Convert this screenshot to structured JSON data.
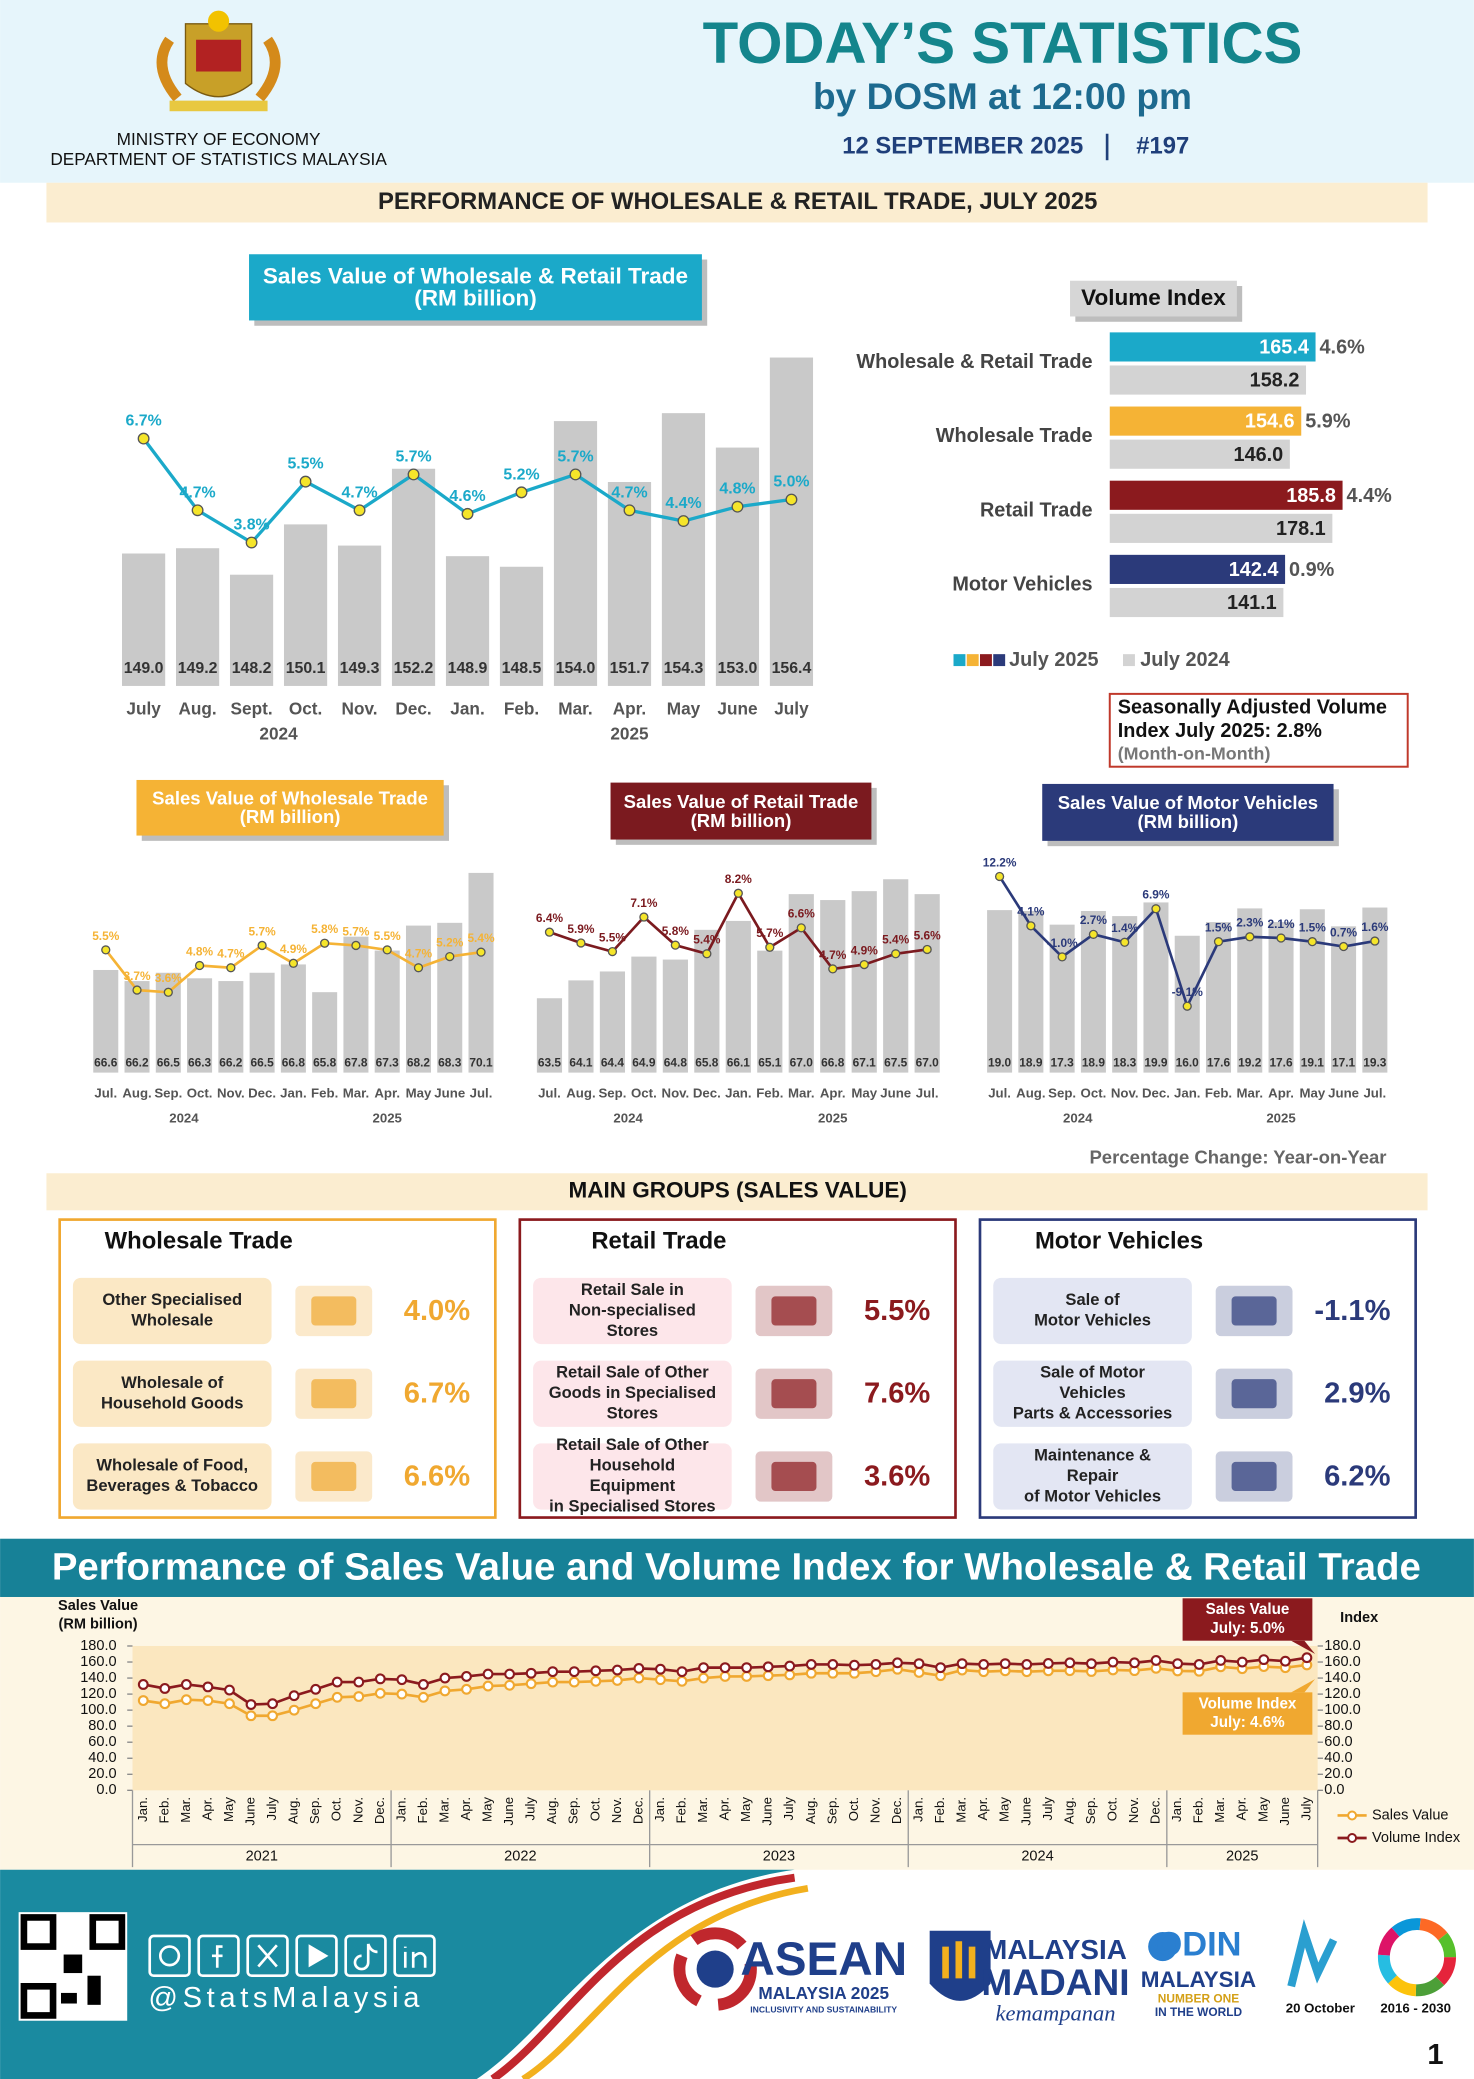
{
  "header": {
    "ministry": [
      "MINISTRY OF ECONOMY",
      "DEPARTMENT OF STATISTICS MALAYSIA"
    ],
    "title": "TODAY’S STATISTICS",
    "subtitle": "by DOSM at 12:00 pm",
    "date": "12 SEPTEMBER 2025",
    "issue": "#197"
  },
  "banner": "PERFORMANCE OF WHOLESALE & RETAIL TRADE, JULY 2025",
  "chart_data": [
    {
      "type": "bar-line",
      "title": [
        "Sales Value of Wholesale & Retail Trade",
        "(RM billion)"
      ],
      "title_color": "#1ba9c9",
      "category_groups": [
        {
          "name": "2024",
          "categories": [
            "July",
            "Aug.",
            "Sept.",
            "Oct.",
            "Nov.",
            "Dec."
          ]
        },
        {
          "name": "2025",
          "categories": [
            "Jan.",
            "Feb.",
            "Mar.",
            "Apr.",
            "May",
            "June",
            "July"
          ]
        }
      ],
      "ylim": [
        144,
        157.4
      ],
      "y2lim": [
        -0.2,
        9.7
      ],
      "series": [
        {
          "color": "#c9c9c9",
          "values": [
            149.0,
            149.2,
            148.2,
            150.1,
            149.3,
            152.2,
            148.9,
            148.5,
            154.0,
            151.7,
            154.3,
            153.0,
            156.4
          ],
          "value_labels": [
            "149.0",
            "149.2",
            "148.2",
            "150.1",
            "149.3",
            "152.2",
            "148.9",
            "148.5",
            "154.0",
            "151.7",
            "154.3",
            "153.0",
            "156.4"
          ]
        },
        {
          "color": "#1ba9c9",
          "axis": "y2",
          "values": [
            6.7,
            4.7,
            3.8,
            5.5,
            4.7,
            5.7,
            4.6,
            5.2,
            5.7,
            4.7,
            4.4,
            4.8,
            5.0
          ],
          "value_labels": [
            "6.7%",
            "4.7%",
            "3.8%",
            "5.5%",
            "4.7%",
            "5.7%",
            "4.6%",
            "5.2%",
            "5.7%",
            "4.7%",
            "4.4%",
            "4.8%",
            "5.0%"
          ]
        }
      ]
    },
    {
      "type": "hbar",
      "title": "Volume Index",
      "categories": [
        "Wholesale & Retail Trade",
        "Wholesale Trade",
        "Retail Trade",
        "Motor Vehicles"
      ],
      "xlim": [
        10,
        285
      ],
      "series": [
        {
          "name": "July 2025",
          "colors": [
            "#1ba9c9",
            "#f5b335",
            "#8b1a1e",
            "#2b3a7a"
          ],
          "values": [
            165.4,
            154.6,
            185.8,
            142.4
          ],
          "value_labels": [
            "165.4",
            "154.6",
            "185.8",
            "142.4"
          ],
          "change_labels": [
            "4.6%",
            "5.9%",
            "4.4%",
            "0.9%"
          ]
        },
        {
          "name": "July 2024",
          "color": "#d3d3d3",
          "values": [
            158.2,
            146.0,
            178.1,
            141.1
          ],
          "value_labels": [
            "158.2",
            "146.0",
            "178.1",
            "141.1"
          ]
        }
      ],
      "note": [
        "Seasonally Adjusted Volume",
        "Index July 2025: 2.8%",
        "(Month-on-Month)"
      ]
    },
    {
      "type": "bar-line",
      "title": [
        "Sales Value of Wholesale Trade",
        "(RM billion)"
      ],
      "title_color": "#f5b335",
      "category_groups": [
        {
          "name": "2024",
          "categories": [
            "Jul.",
            "Aug.",
            "Sep.",
            "Oct.",
            "Nov.",
            "Dec."
          ]
        },
        {
          "name": "2025",
          "categories": [
            "Jan.",
            "Feb.",
            "Mar.",
            "Apr.",
            "May",
            "June",
            "Jul."
          ]
        }
      ],
      "ylim": [
        62.9,
        70.3
      ],
      "y2lim": [
        0,
        9.2
      ],
      "series": [
        {
          "color": "#c9c9c9",
          "values": [
            66.6,
            66.2,
            66.5,
            66.3,
            66.2,
            66.5,
            66.8,
            65.8,
            67.8,
            67.3,
            68.2,
            68.3,
            70.1
          ],
          "value_labels": [
            "66.6",
            "66.2",
            "66.5",
            "66.3",
            "66.2",
            "66.5",
            "66.8",
            "65.8",
            "67.8",
            "67.3",
            "68.2",
            "68.3",
            "70.1"
          ]
        },
        {
          "color": "#f5b335",
          "axis": "y2",
          "values": [
            5.5,
            3.7,
            3.6,
            4.8,
            4.7,
            5.7,
            4.9,
            5.8,
            5.7,
            5.5,
            4.7,
            5.2,
            5.4
          ],
          "value_labels": [
            "5.5%",
            "3.7%",
            "3.6%",
            "4.8%",
            "4.7%",
            "5.7%",
            "4.9%",
            "5.8%",
            "5.7%",
            "5.5%",
            "4.7%",
            "5.2%",
            "5.4%"
          ]
        }
      ]
    },
    {
      "type": "bar-line",
      "title": [
        "Sales Value of Retail Trade",
        "(RM billion)"
      ],
      "title_color": "#7b1a1f",
      "category_groups": [
        {
          "name": "2024",
          "categories": [
            "Jul.",
            "Aug.",
            "Sep.",
            "Oct.",
            "Nov.",
            "Dec."
          ]
        },
        {
          "name": "2025",
          "categories": [
            "Jan.",
            "Feb.",
            "Mar.",
            "Apr.",
            "May",
            "June",
            "Jul."
          ]
        }
      ],
      "ylim": [
        61.0,
        67.9
      ],
      "y2lim": [
        -0.1,
        9.4
      ],
      "series": [
        {
          "color": "#c9c9c9",
          "values": [
            63.5,
            64.1,
            64.4,
            64.9,
            64.8,
            65.8,
            66.1,
            65.1,
            67.0,
            66.8,
            67.1,
            67.5,
            67.0
          ],
          "value_labels": [
            "63.5",
            "64.1",
            "64.4",
            "64.9",
            "64.8",
            "65.8",
            "66.1",
            "65.1",
            "67.0",
            "66.8",
            "67.1",
            "67.5",
            "67.0"
          ]
        },
        {
          "color": "#7b1a1f",
          "axis": "y2",
          "values": [
            6.4,
            5.9,
            5.5,
            7.1,
            5.8,
            5.4,
            8.2,
            5.7,
            6.6,
            4.7,
            4.9,
            5.4,
            5.6
          ],
          "value_labels": [
            "6.4%",
            "5.9%",
            "5.5%",
            "7.1%",
            "5.8%",
            "5.4%",
            "8.2%",
            "5.7%",
            "6.6%",
            "4.7%",
            "4.9%",
            "5.4%",
            "5.6%"
          ]
        }
      ]
    },
    {
      "type": "bar-line",
      "title": [
        "Sales Value of Motor Vehicles",
        "(RM billion)"
      ],
      "title_color": "#2b3a7a",
      "category_groups": [
        {
          "name": "2024",
          "categories": [
            "Jul.",
            "Aug.",
            "Sep.",
            "Oct.",
            "Nov.",
            "Dec."
          ]
        },
        {
          "name": "2025",
          "categories": [
            "Jan.",
            "Feb.",
            "Mar.",
            "Apr.",
            "May",
            "June",
            "Jul."
          ]
        }
      ],
      "ylim": [
        0,
        24
      ],
      "y2lim": [
        -20,
        13.7
      ],
      "series": [
        {
          "color": "#c9c9c9",
          "values": [
            19.0,
            18.9,
            17.3,
            18.9,
            18.3,
            19.9,
            16.0,
            17.6,
            19.2,
            17.6,
            19.1,
            17.1,
            19.3
          ],
          "value_labels": [
            "19.0",
            "18.9",
            "17.3",
            "18.9",
            "18.3",
            "19.9",
            "16.0",
            "17.6",
            "19.2",
            "17.6",
            "19.1",
            "17.1",
            "19.3"
          ]
        },
        {
          "color": "#2b3a7a",
          "axis": "y2",
          "values": [
            12.2,
            4.1,
            -1.0,
            2.7,
            1.4,
            6.9,
            -9.1,
            1.5,
            2.3,
            2.1,
            1.5,
            0.7,
            1.6
          ],
          "value_labels": [
            "12.2%",
            "4.1%",
            "-1.0%",
            "2.7%",
            "1.4%",
            "6.9%",
            "-9.1%",
            "1.5%",
            "2.3%",
            "2.1%",
            "1.5%",
            "0.7%",
            "1.6%"
          ]
        }
      ]
    },
    {
      "type": "line",
      "title": "Performance of Sales Value and Volume Index for Wholesale & Retail Trade",
      "y_title": [
        "Sales Value",
        "(RM billion)"
      ],
      "y2_title": "Index",
      "category_groups": [
        {
          "name": "2021",
          "categories": [
            "Jan.",
            "Feb.",
            "Mar.",
            "Apr.",
            "May",
            "June",
            "July",
            "Aug.",
            "Sep.",
            "Oct.",
            "Nov.",
            "Dec."
          ]
        },
        {
          "name": "2022",
          "categories": [
            "Jan.",
            "Feb.",
            "Mar.",
            "Apr.",
            "May",
            "June",
            "July",
            "Aug.",
            "Sep.",
            "Oct.",
            "Nov.",
            "Dec."
          ]
        },
        {
          "name": "2023",
          "categories": [
            "Jan.",
            "Feb.",
            "Mar.",
            "Apr.",
            "May",
            "June",
            "July",
            "Aug.",
            "Sep.",
            "Oct.",
            "Nov.",
            "Dec."
          ]
        },
        {
          "name": "2024",
          "categories": [
            "Jan.",
            "Feb.",
            "Mar.",
            "Apr.",
            "May",
            "June",
            "July",
            "Aug.",
            "Sep.",
            "Oct.",
            "Nov.",
            "Dec."
          ]
        },
        {
          "name": "2025",
          "categories": [
            "Jan.",
            "Feb.",
            "Mar.",
            "Apr.",
            "May",
            "June",
            "July"
          ]
        }
      ],
      "ylim": [
        0,
        180
      ],
      "yticks": [
        {
          "value": 0,
          "label": "0.0"
        },
        {
          "value": 20,
          "label": "20.0"
        },
        {
          "value": 40,
          "label": "40.0"
        },
        {
          "value": 60,
          "label": "60.0"
        },
        {
          "value": 80,
          "label": "80.0"
        },
        {
          "value": 100,
          "label": "100.0"
        },
        {
          "value": 120,
          "label": "120.0"
        },
        {
          "value": 140,
          "label": "140.0"
        },
        {
          "value": 160,
          "label": "160.0"
        },
        {
          "value": 180,
          "label": "180.0"
        }
      ],
      "y2lim": [
        0,
        180
      ],
      "y2ticks": [
        {
          "value": 0,
          "label": "0.0"
        },
        {
          "value": 20,
          "label": "20.0"
        },
        {
          "value": 40,
          "label": "40.0"
        },
        {
          "value": 60,
          "label": "60.0"
        },
        {
          "value": 80,
          "label": "80.0"
        },
        {
          "value": 100,
          "label": "100.0"
        },
        {
          "value": 120,
          "label": "120.0"
        },
        {
          "value": 140,
          "label": "140.0"
        },
        {
          "value": 160,
          "label": "160.0"
        },
        {
          "value": 180,
          "label": "180.0"
        }
      ],
      "series": [
        {
          "name": "Sales Value",
          "color": "#f0a830",
          "values": [
            112,
            108,
            113,
            112,
            108,
            93,
            93,
            100,
            108,
            116,
            117,
            121,
            120,
            116,
            124,
            126,
            130,
            131,
            133,
            135,
            135,
            136,
            137,
            140,
            138,
            136,
            140,
            142,
            142,
            143,
            144,
            146,
            146,
            146,
            148,
            151,
            147,
            143,
            150,
            148,
            149,
            148,
            149.0,
            149.2,
            148.2,
            150.1,
            149.3,
            152.2,
            148.9,
            148.5,
            154.0,
            151.7,
            154.3,
            153.0,
            156.4
          ]
        },
        {
          "name": "Volume Index",
          "color": "#8b1a1e",
          "axis": "y2",
          "values": [
            132,
            127,
            132,
            129,
            125,
            107,
            108,
            118,
            126,
            135,
            135,
            139,
            138,
            132,
            140,
            142,
            145,
            145,
            146,
            148,
            148,
            149,
            150,
            152,
            151,
            148,
            153,
            153,
            153,
            154,
            155,
            157,
            157,
            156,
            157,
            159,
            158,
            153,
            158,
            157,
            158,
            157,
            158.2,
            159,
            158,
            160,
            159,
            162,
            158,
            157,
            162,
            160,
            163,
            161,
            165.4
          ]
        }
      ],
      "legend": "right",
      "annotations": [
        {
          "lines": [
            "Sales Value",
            "July: 5.0%"
          ],
          "color": "#8b1a1e"
        },
        {
          "lines": [
            "Volume Index",
            "July: 4.6%"
          ],
          "color": "#f0a830"
        }
      ]
    }
  ],
  "yoy_note": "Percentage Change: Year-on-Year",
  "main_groups": {
    "title": "MAIN GROUPS (SALES VALUE)",
    "panels": [
      {
        "title": "Wholesale Trade",
        "color": "#f0a830",
        "tint": "#fbe8c5",
        "items": [
          {
            "label": [
              "Other Specialised",
              "Wholesale"
            ],
            "value": "4.0%"
          },
          {
            "label": [
              "Wholesale of",
              "Household Goods"
            ],
            "value": "6.7%"
          },
          {
            "label": [
              "Wholesale of Food,",
              "Beverages & Tobacco"
            ],
            "value": "6.6%"
          }
        ]
      },
      {
        "title": "Retail Trade",
        "color": "#8b1a1e",
        "tint": "#fde6ea",
        "items": [
          {
            "label": [
              "Retail Sale in",
              "Non-specialised",
              "Stores"
            ],
            "value": "5.5%"
          },
          {
            "label": [
              "Retail Sale of Other",
              "Goods in Specialised",
              "Stores"
            ],
            "value": "7.6%"
          },
          {
            "label": [
              "Retail Sale of Other",
              "Household",
              "Equipment",
              "in Specialised Stores"
            ],
            "value": "3.6%"
          }
        ]
      },
      {
        "title": "Motor Vehicles",
        "color": "#2b3a7a",
        "tint": "#e3e6f3",
        "items": [
          {
            "label": [
              "Sale of",
              "Motor Vehicles"
            ],
            "value": "-1.1%"
          },
          {
            "label": [
              "Sale of Motor",
              "Vehicles",
              "Parts & Accessories"
            ],
            "value": "2.9%"
          },
          {
            "label": [
              "Maintenance &",
              "Repair",
              "of Motor Vehicles"
            ],
            "value": "6.2%"
          }
        ]
      }
    ]
  },
  "footer": {
    "handle": "@StatsMalaysia",
    "asean": [
      "ASEAN",
      "MALAYSIA 2025",
      "INCLUSIVITY AND SUSTAINABILITY"
    ],
    "madani": [
      "MALAYSIA",
      "MADANI",
      "kemampanan"
    ],
    "odin": [
      "ODIN",
      "MALAYSIA",
      "NUMBER ONE",
      "IN THE WORLD"
    ],
    "stats_day": "20 October",
    "sdg": "2016 - 2030",
    "page": "1"
  }
}
